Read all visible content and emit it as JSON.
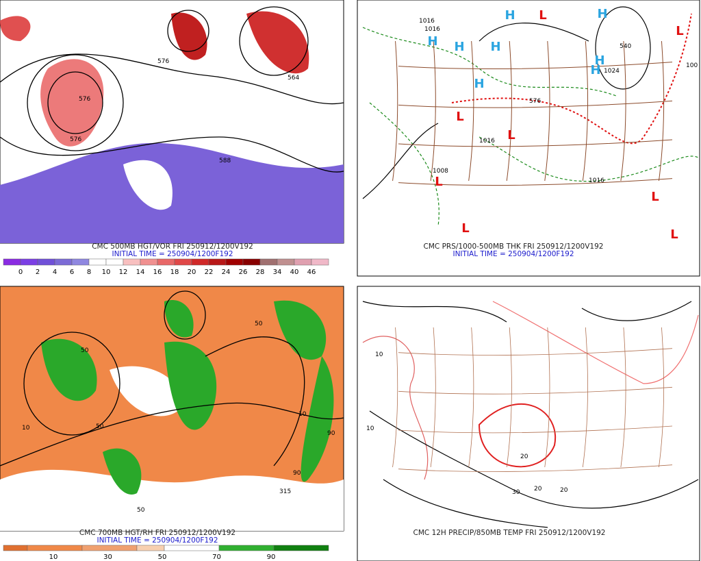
{
  "panels": [
    {
      "caption": "CMC 500MB HGT/VOR FRI 250912/1200V192",
      "initial_time": "INITIAL TIME = 250904/1200F192",
      "colorbar_labels": [
        0,
        2,
        4,
        6,
        8,
        10,
        12,
        14,
        16,
        18,
        20,
        22,
        24,
        26,
        28,
        34,
        40,
        46
      ],
      "contour_labels": [
        "576",
        "576",
        "576",
        "564",
        "588"
      ]
    },
    {
      "caption": "CMC PRS/1000-500MB THK FRI 250912/1200V192",
      "initial_time": "INITIAL TIME = 250904/1200F192",
      "high_symbol": "H",
      "low_symbol": "L",
      "contour_labels": [
        "1016",
        "1016",
        "1016",
        "1008",
        "1016",
        "1024",
        "576",
        "540",
        "100"
      ]
    },
    {
      "caption": "CMC 700MB HGT/RH FRI 250912/1200V192",
      "initial_time": "INITIAL TIME = 250904/1200F192",
      "colorbar_labels": [
        10,
        30,
        50,
        70,
        90
      ],
      "contour_labels": [
        "50",
        "50",
        "50",
        "90",
        "90",
        "10",
        "10",
        "315",
        "50"
      ]
    },
    {
      "caption": "CMC 12H PRECIP/850MB TEMP FRI 250912/1200V192",
      "contour_labels": [
        "10",
        "10",
        "20",
        "20",
        "20",
        "30"
      ]
    }
  ]
}
